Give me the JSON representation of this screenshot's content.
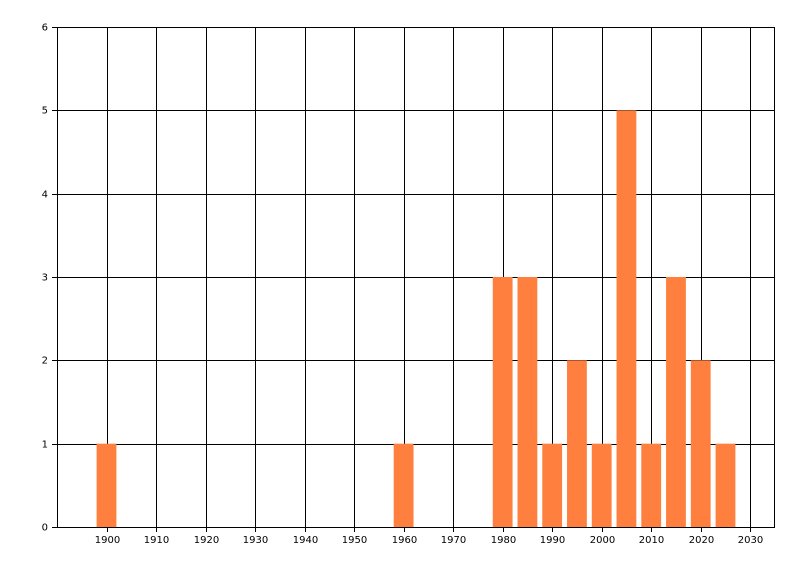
{
  "chart_data": {
    "type": "bar",
    "x": [
      1900,
      1960,
      1980,
      1985,
      1990,
      1995,
      2000,
      2005,
      2010,
      2015,
      2020,
      2025
    ],
    "values": [
      1,
      1,
      3,
      3,
      1,
      2,
      1,
      5,
      1,
      3,
      2,
      1
    ],
    "color": "#ff7f3f",
    "xlim": [
      1890,
      2035
    ],
    "xticks": [
      1900,
      1910,
      1920,
      1930,
      1940,
      1950,
      1960,
      1970,
      1980,
      1990,
      2000,
      2010,
      2020,
      2030
    ],
    "ylim": [
      0,
      6
    ],
    "yticks": [
      0,
      1,
      2,
      3,
      4,
      5,
      6
    ],
    "grid": true
  }
}
